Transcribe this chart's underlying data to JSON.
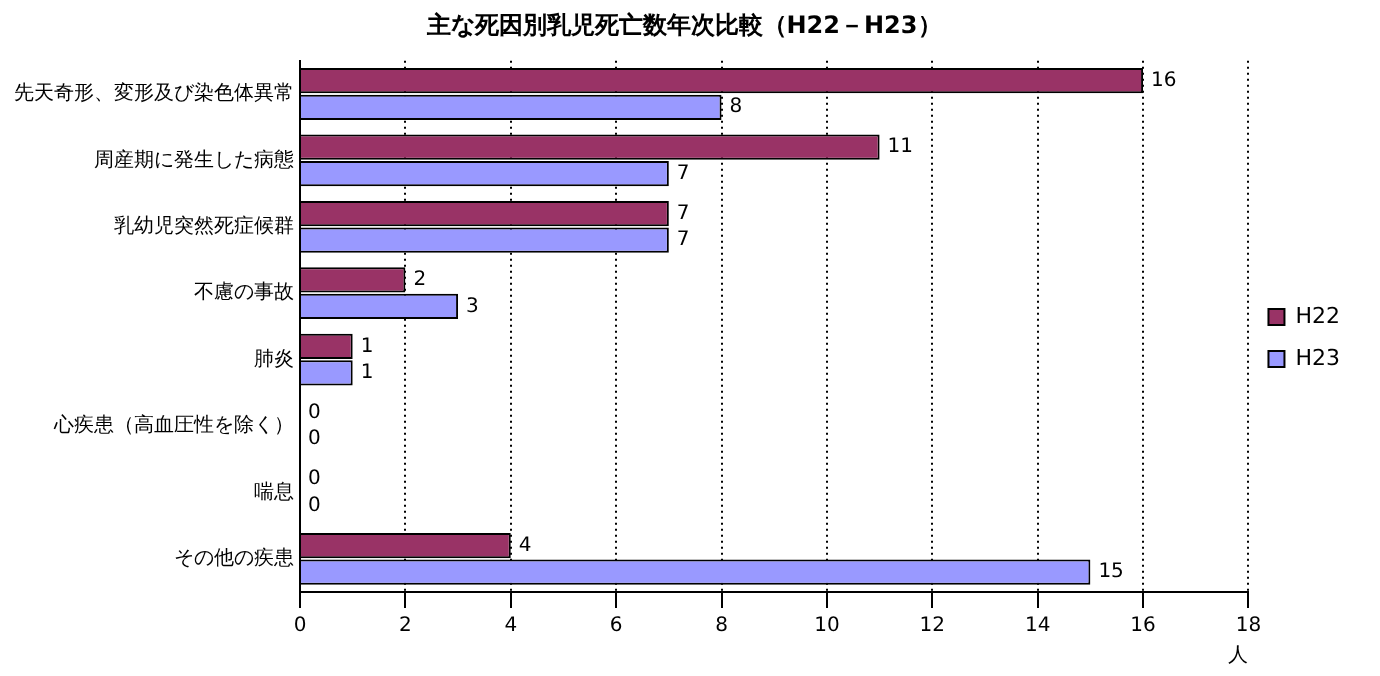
{
  "chart_data": {
    "type": "bar",
    "orientation": "horizontal",
    "title": "主な死因別乳児死亡数年次比較（H22－H23）",
    "xlabel": "人",
    "categories": [
      "先天奇形、変形及び染色体異常",
      "周産期に発生した病態",
      "乳幼児突然死症候群",
      "不慮の事故",
      "肺炎",
      "心疾患（高血圧性を除く）",
      "喘息",
      "その他の疾患"
    ],
    "series": [
      {
        "name": "H22",
        "color": "#993366",
        "values": [
          16,
          11,
          7,
          2,
          1,
          0,
          0,
          4
        ]
      },
      {
        "name": "H23",
        "color": "#9999ff",
        "values": [
          8,
          7,
          7,
          3,
          1,
          0,
          0,
          15
        ]
      }
    ],
    "xlim": [
      0,
      18
    ],
    "xticks": [
      0,
      2,
      4,
      6,
      8,
      10,
      12,
      14,
      16,
      18
    ],
    "grid": "x",
    "legend": "right",
    "data_labels": true
  }
}
